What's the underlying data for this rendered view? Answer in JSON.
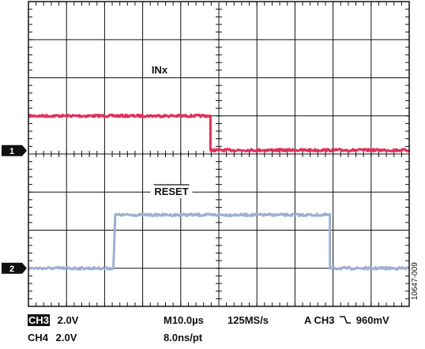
{
  "chart_data": {
    "type": "line",
    "title": "",
    "xlabel": "",
    "ylabel": "",
    "grid": true,
    "x_divisions": 10,
    "y_divisions": 8,
    "time_per_division_us": 10,
    "xlim": [
      0,
      100
    ],
    "ylim": [
      -4,
      4
    ],
    "series": [
      {
        "name": "INx",
        "channel_marker": "1",
        "color": "#e0305a",
        "x": [
          0,
          47.8,
          47.8,
          100
        ],
        "y": [
          1.0,
          1.0,
          0.1,
          0.1
        ]
      },
      {
        "name": "RESET",
        "channel_marker": "2",
        "color": "#9cb0d0",
        "x": [
          0,
          22.3,
          22.8,
          79.2,
          79.2,
          100
        ],
        "y": [
          -3.0,
          -3.0,
          -1.6,
          -1.6,
          -3.0,
          -3.0
        ]
      }
    ]
  },
  "footer": {
    "ch3_badge": "CH3",
    "ch3_scale": "2.0V",
    "ch4_label": "CH4",
    "ch4_scale": "2.0V",
    "timebase": "M10.0µs",
    "sample_rate": "125MS/s",
    "resolution": "8.0ns/pt",
    "trigger": "A  CH3 ⌐\\ 960mV",
    "trigger_prefix": "A  CH3",
    "trigger_level": "960mV"
  },
  "figure_id": "10647-009",
  "colors": {
    "grid": "#111111",
    "border": "#111111",
    "marker_fill": "#111111"
  }
}
